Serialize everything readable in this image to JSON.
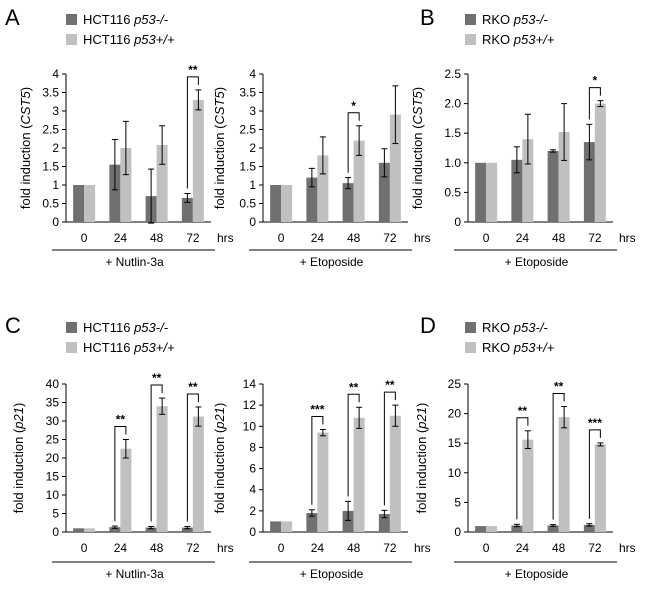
{
  "legend_colors": {
    "null": "#707070",
    "wt": "#c0c0c0"
  },
  "chart_data": [
    {
      "id": "A1",
      "type": "bar",
      "panel_letter": "A",
      "legend": [
        "HCT116 p53-/-",
        "HCT116 p53+/+"
      ],
      "ylabel_prefix": "fold induction (",
      "ylabel_gene": "CST5",
      "ylabel_suffix": ")",
      "xlabel": "hrs",
      "condition": "+ Nutlin-3a",
      "categories": [
        "0",
        "24",
        "48",
        "72"
      ],
      "ylim": [
        0,
        4
      ],
      "yticks": [
        "0",
        "0.5",
        "1",
        "1.5",
        "2",
        "2.5",
        "3",
        "3.5",
        "4"
      ],
      "series": [
        {
          "name": "HCT116 p53-/-",
          "values": [
            1.0,
            1.55,
            0.7,
            0.65
          ],
          "errors": [
            0.0,
            0.68,
            0.73,
            0.12
          ]
        },
        {
          "name": "HCT116 p53+/+",
          "values": [
            1.0,
            2.0,
            2.08,
            3.3
          ],
          "errors": [
            0.0,
            0.72,
            0.52,
            0.27
          ]
        }
      ],
      "significance": [
        {
          "category": 3,
          "label": "**"
        }
      ]
    },
    {
      "id": "A2",
      "type": "bar",
      "panel_letter": "",
      "legend": [],
      "ylabel_prefix": "fold induction (",
      "ylabel_gene": "CST5",
      "ylabel_suffix": ")",
      "xlabel": "hrs",
      "condition": "+ Etoposide",
      "categories": [
        "0",
        "24",
        "48",
        "72"
      ],
      "ylim": [
        0,
        4
      ],
      "yticks": [
        "0",
        "0.5",
        "1",
        "1.5",
        "2",
        "2.5",
        "3",
        "3.5",
        "4"
      ],
      "series": [
        {
          "name": "HCT116 p53-/-",
          "values": [
            1.0,
            1.2,
            1.05,
            1.6
          ],
          "errors": [
            0.0,
            0.25,
            0.15,
            0.38
          ]
        },
        {
          "name": "HCT116 p53+/+",
          "values": [
            1.0,
            1.8,
            2.2,
            2.9
          ],
          "errors": [
            0.0,
            0.5,
            0.4,
            0.78
          ]
        }
      ],
      "significance": [
        {
          "category": 2,
          "label": "*"
        }
      ]
    },
    {
      "id": "B",
      "type": "bar",
      "panel_letter": "B",
      "legend": [
        "RKO p53-/-",
        "RKO p53+/+"
      ],
      "ylabel_prefix": "fold induction (",
      "ylabel_gene": "CST5",
      "ylabel_suffix": ")",
      "xlabel": "hrs",
      "condition": "+ Etoposide",
      "categories": [
        "0",
        "24",
        "48",
        "72"
      ],
      "ylim": [
        0,
        2.5
      ],
      "yticks": [
        "0",
        "0.5",
        "1.0",
        "1.5",
        "2.0",
        "2.5"
      ],
      "series": [
        {
          "name": "RKO p53-/-",
          "values": [
            1.0,
            1.05,
            1.2,
            1.35
          ],
          "errors": [
            0.0,
            0.22,
            0.02,
            0.3
          ]
        },
        {
          "name": "RKO p53+/+",
          "values": [
            1.0,
            1.4,
            1.52,
            2.0
          ],
          "errors": [
            0.0,
            0.42,
            0.48,
            0.05
          ]
        }
      ],
      "significance": [
        {
          "category": 3,
          "label": "*"
        }
      ]
    },
    {
      "id": "C1",
      "type": "bar",
      "panel_letter": "C",
      "legend": [
        "HCT116 p53-/-",
        "HCT116 p53+/+"
      ],
      "ylabel_prefix": "fold induction (",
      "ylabel_gene": "p21",
      "ylabel_suffix": ")",
      "xlabel": "hrs",
      "condition": "+ Nutlin-3a",
      "categories": [
        "0",
        "24",
        "48",
        "72"
      ],
      "ylim": [
        0,
        40
      ],
      "yticks": [
        "0",
        "5",
        "10",
        "15",
        "20",
        "25",
        "30",
        "35",
        "40"
      ],
      "series": [
        {
          "name": "HCT116 p53-/-",
          "values": [
            1.0,
            1.3,
            1.2,
            1.2
          ],
          "errors": [
            0.0,
            0.3,
            0.3,
            0.3
          ]
        },
        {
          "name": "HCT116 p53+/+",
          "values": [
            1.0,
            22.5,
            34.0,
            31.2
          ],
          "errors": [
            0.0,
            2.5,
            2.2,
            2.6
          ]
        }
      ],
      "significance": [
        {
          "category": 1,
          "label": "**"
        },
        {
          "category": 2,
          "label": "**"
        },
        {
          "category": 3,
          "label": "**"
        }
      ]
    },
    {
      "id": "C2",
      "type": "bar",
      "panel_letter": "",
      "legend": [],
      "ylabel_prefix": "fold induction (",
      "ylabel_gene": "p21",
      "ylabel_suffix": ")",
      "xlabel": "hrs",
      "condition": "+ Etoposide",
      "categories": [
        "0",
        "24",
        "48",
        "72"
      ],
      "ylim": [
        0,
        14
      ],
      "yticks": [
        "0",
        "2",
        "4",
        "6",
        "8",
        "10",
        "12",
        "14"
      ],
      "series": [
        {
          "name": "HCT116 p53-/-",
          "values": [
            1.0,
            1.8,
            2.0,
            1.7
          ],
          "errors": [
            0.0,
            0.3,
            0.9,
            0.35
          ]
        },
        {
          "name": "HCT116 p53+/+",
          "values": [
            1.0,
            9.4,
            10.8,
            11.0
          ],
          "errors": [
            0.0,
            0.3,
            1.0,
            1.0
          ]
        }
      ],
      "significance": [
        {
          "category": 1,
          "label": "***"
        },
        {
          "category": 2,
          "label": "**"
        },
        {
          "category": 3,
          "label": "**"
        }
      ]
    },
    {
      "id": "D",
      "type": "bar",
      "panel_letter": "D",
      "legend": [
        "RKO p53-/-",
        "RKO p53+/+"
      ],
      "ylabel_prefix": "fold induction (",
      "ylabel_gene": "p21",
      "ylabel_suffix": ")",
      "xlabel": "hrs",
      "condition": "+ Etoposide",
      "categories": [
        "0",
        "24",
        "48",
        "72"
      ],
      "ylim": [
        0,
        25
      ],
      "yticks": [
        "0",
        "5",
        "10",
        "15",
        "20",
        "25"
      ],
      "series": [
        {
          "name": "RKO p53-/-",
          "values": [
            1.0,
            1.1,
            1.1,
            1.2
          ],
          "errors": [
            0.0,
            0.2,
            0.15,
            0.2
          ]
        },
        {
          "name": "RKO p53+/+",
          "values": [
            1.0,
            15.6,
            19.4,
            14.8
          ],
          "errors": [
            0.0,
            1.5,
            1.8,
            0.25
          ]
        }
      ],
      "significance": [
        {
          "category": 1,
          "label": "**"
        },
        {
          "category": 2,
          "label": "**"
        },
        {
          "category": 3,
          "label": "***"
        }
      ]
    }
  ]
}
